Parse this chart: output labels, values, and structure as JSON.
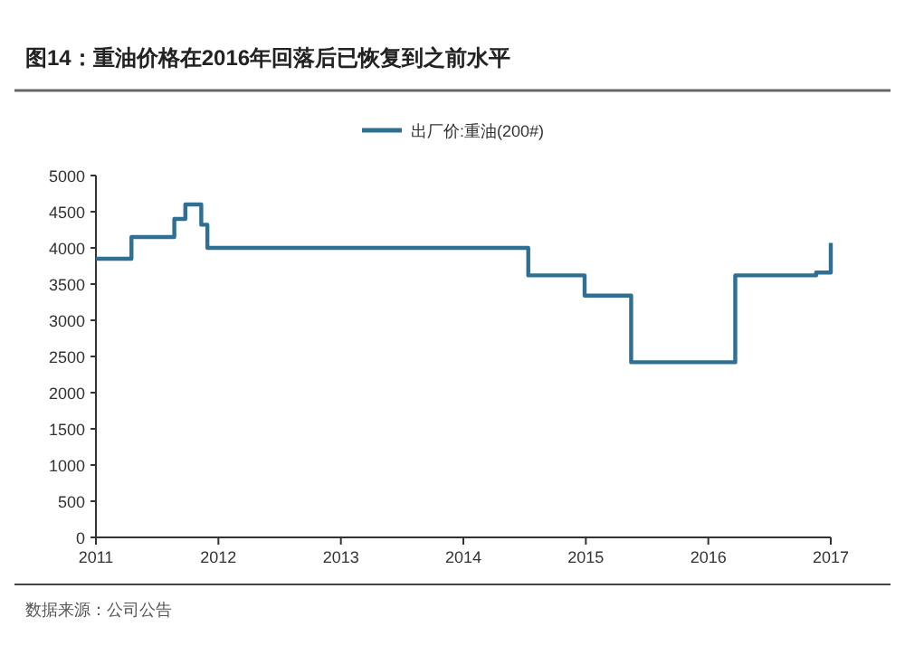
{
  "chart_data": {
    "type": "step",
    "title": "图14：重油价格在2016年回落后已恢复到之前水平",
    "series": [
      {
        "name": "出厂价:重油(200#)",
        "color": "#2f6f93",
        "x": [
          2011,
          2011.29,
          2011.64,
          2011.73,
          2011.86,
          2011.91,
          2014.53,
          2014.99,
          2015.37,
          2016.22,
          2016.88,
          2017
        ],
        "values": [
          3850,
          4150,
          4400,
          4600,
          4320,
          4000,
          3620,
          3340,
          2420,
          3620,
          3660,
          4070
        ]
      }
    ],
    "xlim": [
      2011,
      2017
    ],
    "xticks": [
      2011,
      2012,
      2013,
      2014,
      2015,
      2016,
      2017
    ],
    "ylim": [
      0,
      5000
    ],
    "yticks": [
      0,
      500,
      1000,
      1500,
      2000,
      2500,
      3000,
      3500,
      4000,
      4500,
      5000
    ],
    "legend": "top",
    "annotations": [
      "数据来源：公司公告"
    ]
  }
}
